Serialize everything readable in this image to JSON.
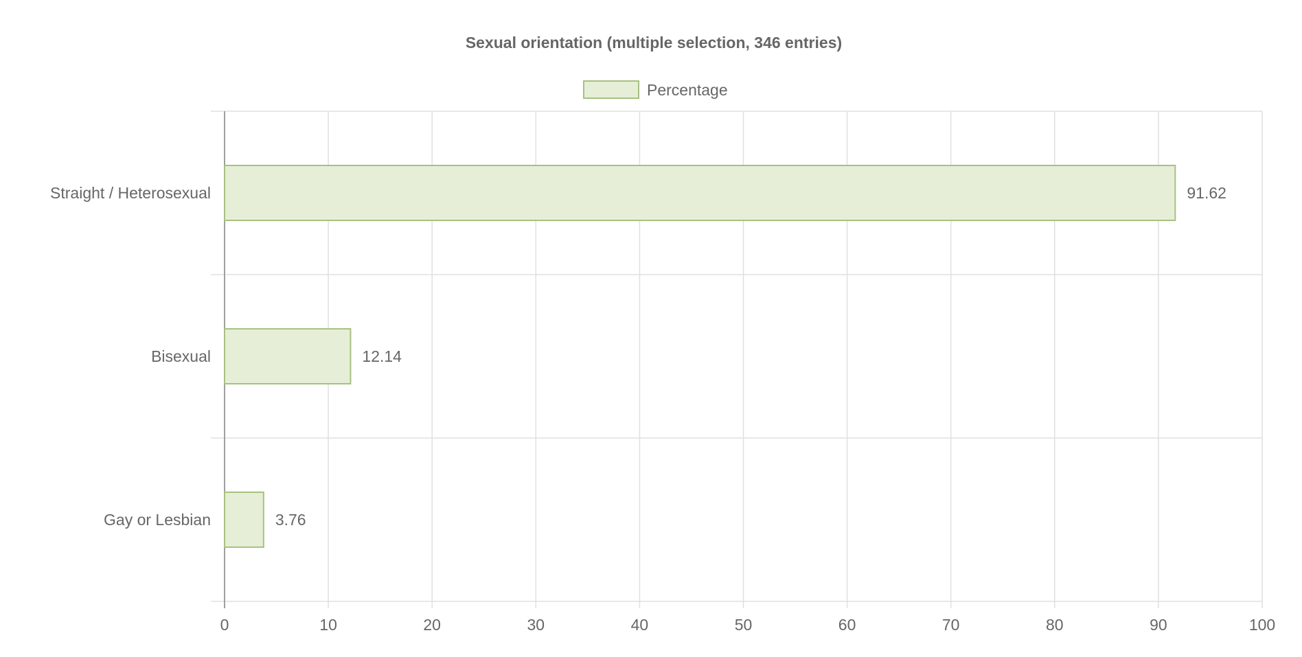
{
  "chart_data": {
    "type": "bar",
    "orientation": "horizontal",
    "title": "Sexual orientation (multiple selection, 346 entries)",
    "xlabel": "",
    "ylabel": "",
    "categories": [
      "Straight / Heterosexual",
      "Bisexual",
      "Gay or Lesbian"
    ],
    "series": [
      {
        "name": "Percentage",
        "values": [
          91.62,
          12.14,
          3.76
        ]
      }
    ],
    "value_labels": [
      "91.62",
      "12.14",
      "3.76"
    ],
    "xlim": [
      0,
      100
    ],
    "x_ticks": [
      0,
      10,
      20,
      30,
      40,
      50,
      60,
      70,
      80,
      90,
      100
    ],
    "grid": true,
    "legend_position": "top-center",
    "colors": {
      "bar_fill": "#e6eed8",
      "bar_stroke": "#a7c17f",
      "grid": "#e0e0e0",
      "axis": "#9e9e9e",
      "text": "#666666"
    }
  }
}
